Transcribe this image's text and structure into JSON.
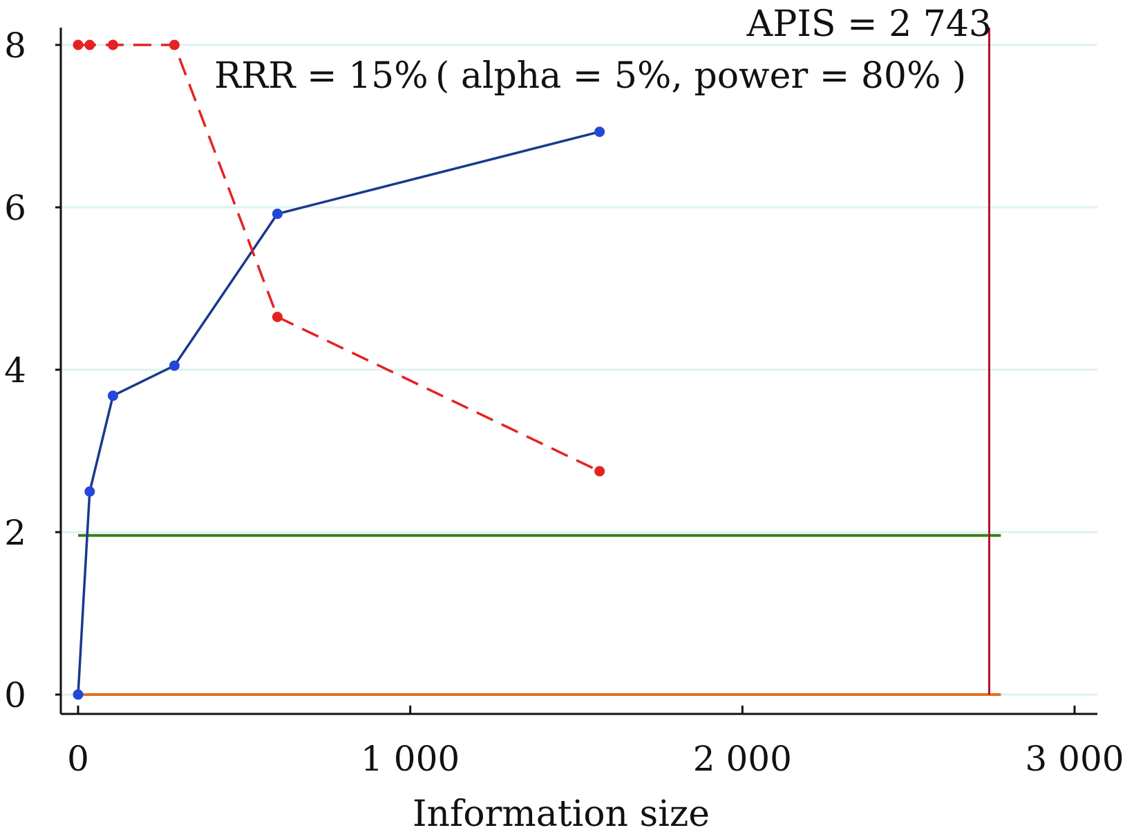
{
  "chart_data": {
    "type": "line",
    "xlabel": "Information size",
    "ylabel": "",
    "xlim": [
      -50,
      3050
    ],
    "ylim": [
      -0.2,
      8.3
    ],
    "xticks": [
      0,
      1000,
      2000,
      3000
    ],
    "xtick_labels": [
      "0",
      "1 000",
      "2 000",
      "3 000"
    ],
    "yticks": [
      0,
      2,
      4,
      6,
      8
    ],
    "ytick_labels": [
      "0",
      "2",
      "4",
      "6",
      "8"
    ],
    "grid": true,
    "legend": "none",
    "annotations": {
      "apis": "APIS = 2 743",
      "rrr": "RRR = 15% ( alpha = 5%, power = 80% )"
    },
    "series": [
      {
        "color": "#1a3a8a",
        "marker_color": "#2347d6",
        "dashed": false,
        "x": [
          0,
          35,
          105,
          290,
          600,
          1570
        ],
        "y": [
          0,
          2.5,
          3.68,
          4.05,
          5.92,
          6.93
        ]
      },
      {
        "color": "#e52222",
        "marker_color": "#e52222",
        "dashed": true,
        "x": [
          0,
          35,
          105,
          290,
          600,
          1570
        ],
        "y": [
          8,
          8,
          8,
          8,
          4.65,
          2.75
        ]
      }
    ],
    "hlines": [
      {
        "y": 1.96,
        "x_from": 0,
        "x_to": 2778,
        "color": "#3a7a1a"
      },
      {
        "y": 0,
        "x_from": 0,
        "x_to": 2778,
        "color": "#e07020"
      }
    ],
    "vlines": [
      {
        "x": 2743,
        "color": "#b01030"
      }
    ]
  }
}
